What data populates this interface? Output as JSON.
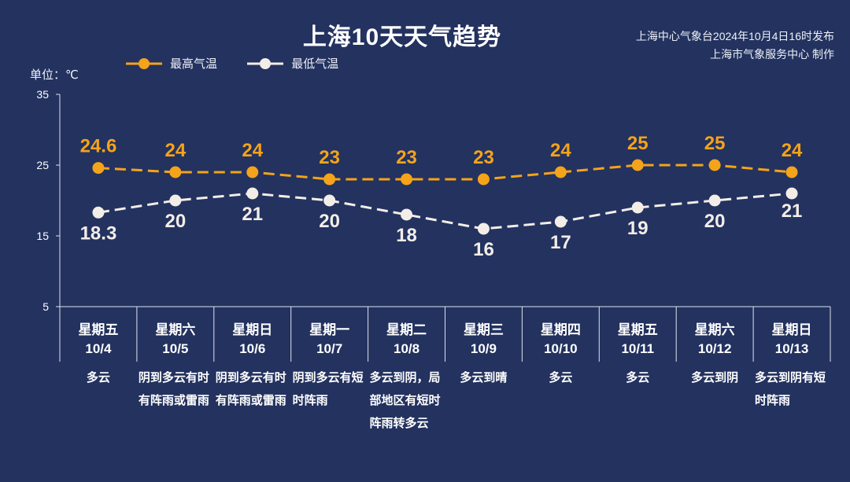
{
  "title": "上海10天天气趋势",
  "issuer": {
    "line1": "上海中心气象台2024年10月4日16时发布",
    "line2": "上海市气象服务中心 制作"
  },
  "unit_label": "单位：℃",
  "colors": {
    "background": "#23325f",
    "high": "#f5a31a",
    "low": "#f3ede8",
    "axis": "#dfe3ec"
  },
  "chart_data": {
    "type": "line",
    "ylabel": "单位：℃",
    "ylim": [
      5,
      35
    ],
    "yticks": [
      5,
      15,
      25,
      35
    ],
    "grid": false,
    "legend_position": "top-left",
    "categories": [
      "10/4",
      "10/5",
      "10/6",
      "10/7",
      "10/8",
      "10/9",
      "10/10",
      "10/11",
      "10/12",
      "10/13"
    ],
    "series": [
      {
        "name": "最高气温",
        "labels": [
          "24.6",
          "24",
          "24",
          "23",
          "23",
          "23",
          "24",
          "25",
          "25",
          "24"
        ],
        "values": [
          24.6,
          24,
          24,
          23,
          23,
          23,
          24,
          25,
          25,
          24
        ]
      },
      {
        "name": "最低气温",
        "labels": [
          "18.3",
          "20",
          "21",
          "20",
          "18",
          "16",
          "17",
          "19",
          "20",
          "21"
        ],
        "values": [
          18.3,
          20,
          21,
          20,
          18,
          16,
          17,
          19,
          20,
          21
        ]
      }
    ]
  },
  "days": [
    {
      "weekday": "星期五",
      "date": "10/4",
      "weather": "多云"
    },
    {
      "weekday": "星期六",
      "date": "10/5",
      "weather": "阴到多云有时有阵雨或雷雨"
    },
    {
      "weekday": "星期日",
      "date": "10/6",
      "weather": "阴到多云有时有阵雨或雷雨"
    },
    {
      "weekday": "星期一",
      "date": "10/7",
      "weather": "阴到多云有短时阵雨"
    },
    {
      "weekday": "星期二",
      "date": "10/8",
      "weather": "多云到阴，局部地区有短时阵雨转多云"
    },
    {
      "weekday": "星期三",
      "date": "10/9",
      "weather": "多云到晴"
    },
    {
      "weekday": "星期四",
      "date": "10/10",
      "weather": "多云"
    },
    {
      "weekday": "星期五",
      "date": "10/11",
      "weather": "多云"
    },
    {
      "weekday": "星期六",
      "date": "10/12",
      "weather": "多云到阴"
    },
    {
      "weekday": "星期日",
      "date": "10/13",
      "weather": "多云到阴有短时阵雨"
    }
  ]
}
